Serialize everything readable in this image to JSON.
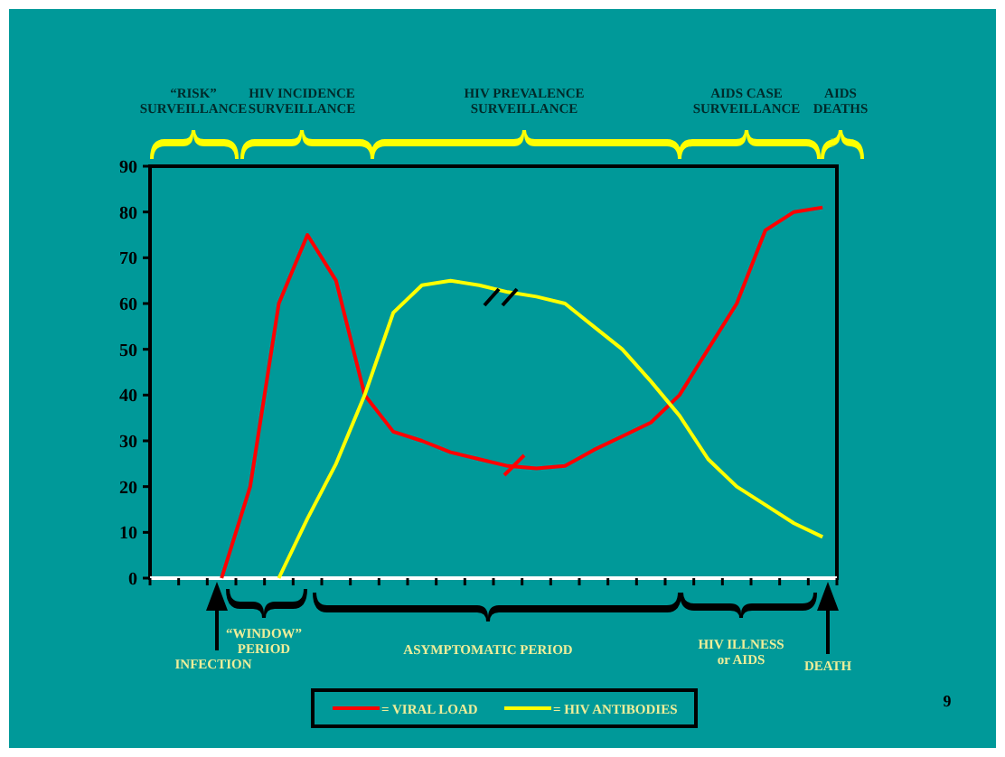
{
  "chart_data": {
    "type": "line",
    "categories": [
      null,
      null,
      null,
      null,
      null,
      null,
      null,
      null,
      null,
      null,
      null,
      null,
      null,
      null,
      null,
      null,
      null,
      null,
      null,
      null,
      null,
      null,
      null,
      null
    ],
    "series": [
      {
        "name": "= VIRAL LOAD",
        "color": "#ff0000",
        "values": [
          null,
          null,
          0,
          20,
          60,
          75,
          65,
          40,
          32,
          30,
          27.5,
          26,
          24.5,
          24,
          24.5,
          28,
          31,
          34,
          40,
          50,
          60,
          76,
          80,
          81
        ]
      },
      {
        "name": "= HIV ANTIBODIES",
        "color": "#ffff00",
        "values": [
          null,
          null,
          null,
          null,
          0,
          13,
          25,
          40,
          58,
          64,
          65,
          64,
          62.5,
          61.5,
          60,
          55,
          50,
          43,
          35.5,
          26,
          20,
          16,
          12,
          9
        ]
      }
    ],
    "ylim": [
      0,
      90
    ],
    "yticks": [
      0,
      10,
      20,
      30,
      40,
      50,
      60,
      70,
      80,
      90
    ],
    "legend": "bottom",
    "annotations": [
      "“RISK”\nSURVEILLANCE",
      "HIV INCIDENCE\nSURVEILLANCE",
      "HIV PREVALENCE\nSURVEILLANCE",
      "AIDS CASE\nSURVEILLANCE",
      "AIDS\nDEATHS",
      "INFECTION",
      "“WINDOW”\nPERIOD",
      "ASYMPTOMATIC PERIOD",
      "HIV ILLNESS\nor AIDS",
      "DEATH",
      "9"
    ]
  }
}
